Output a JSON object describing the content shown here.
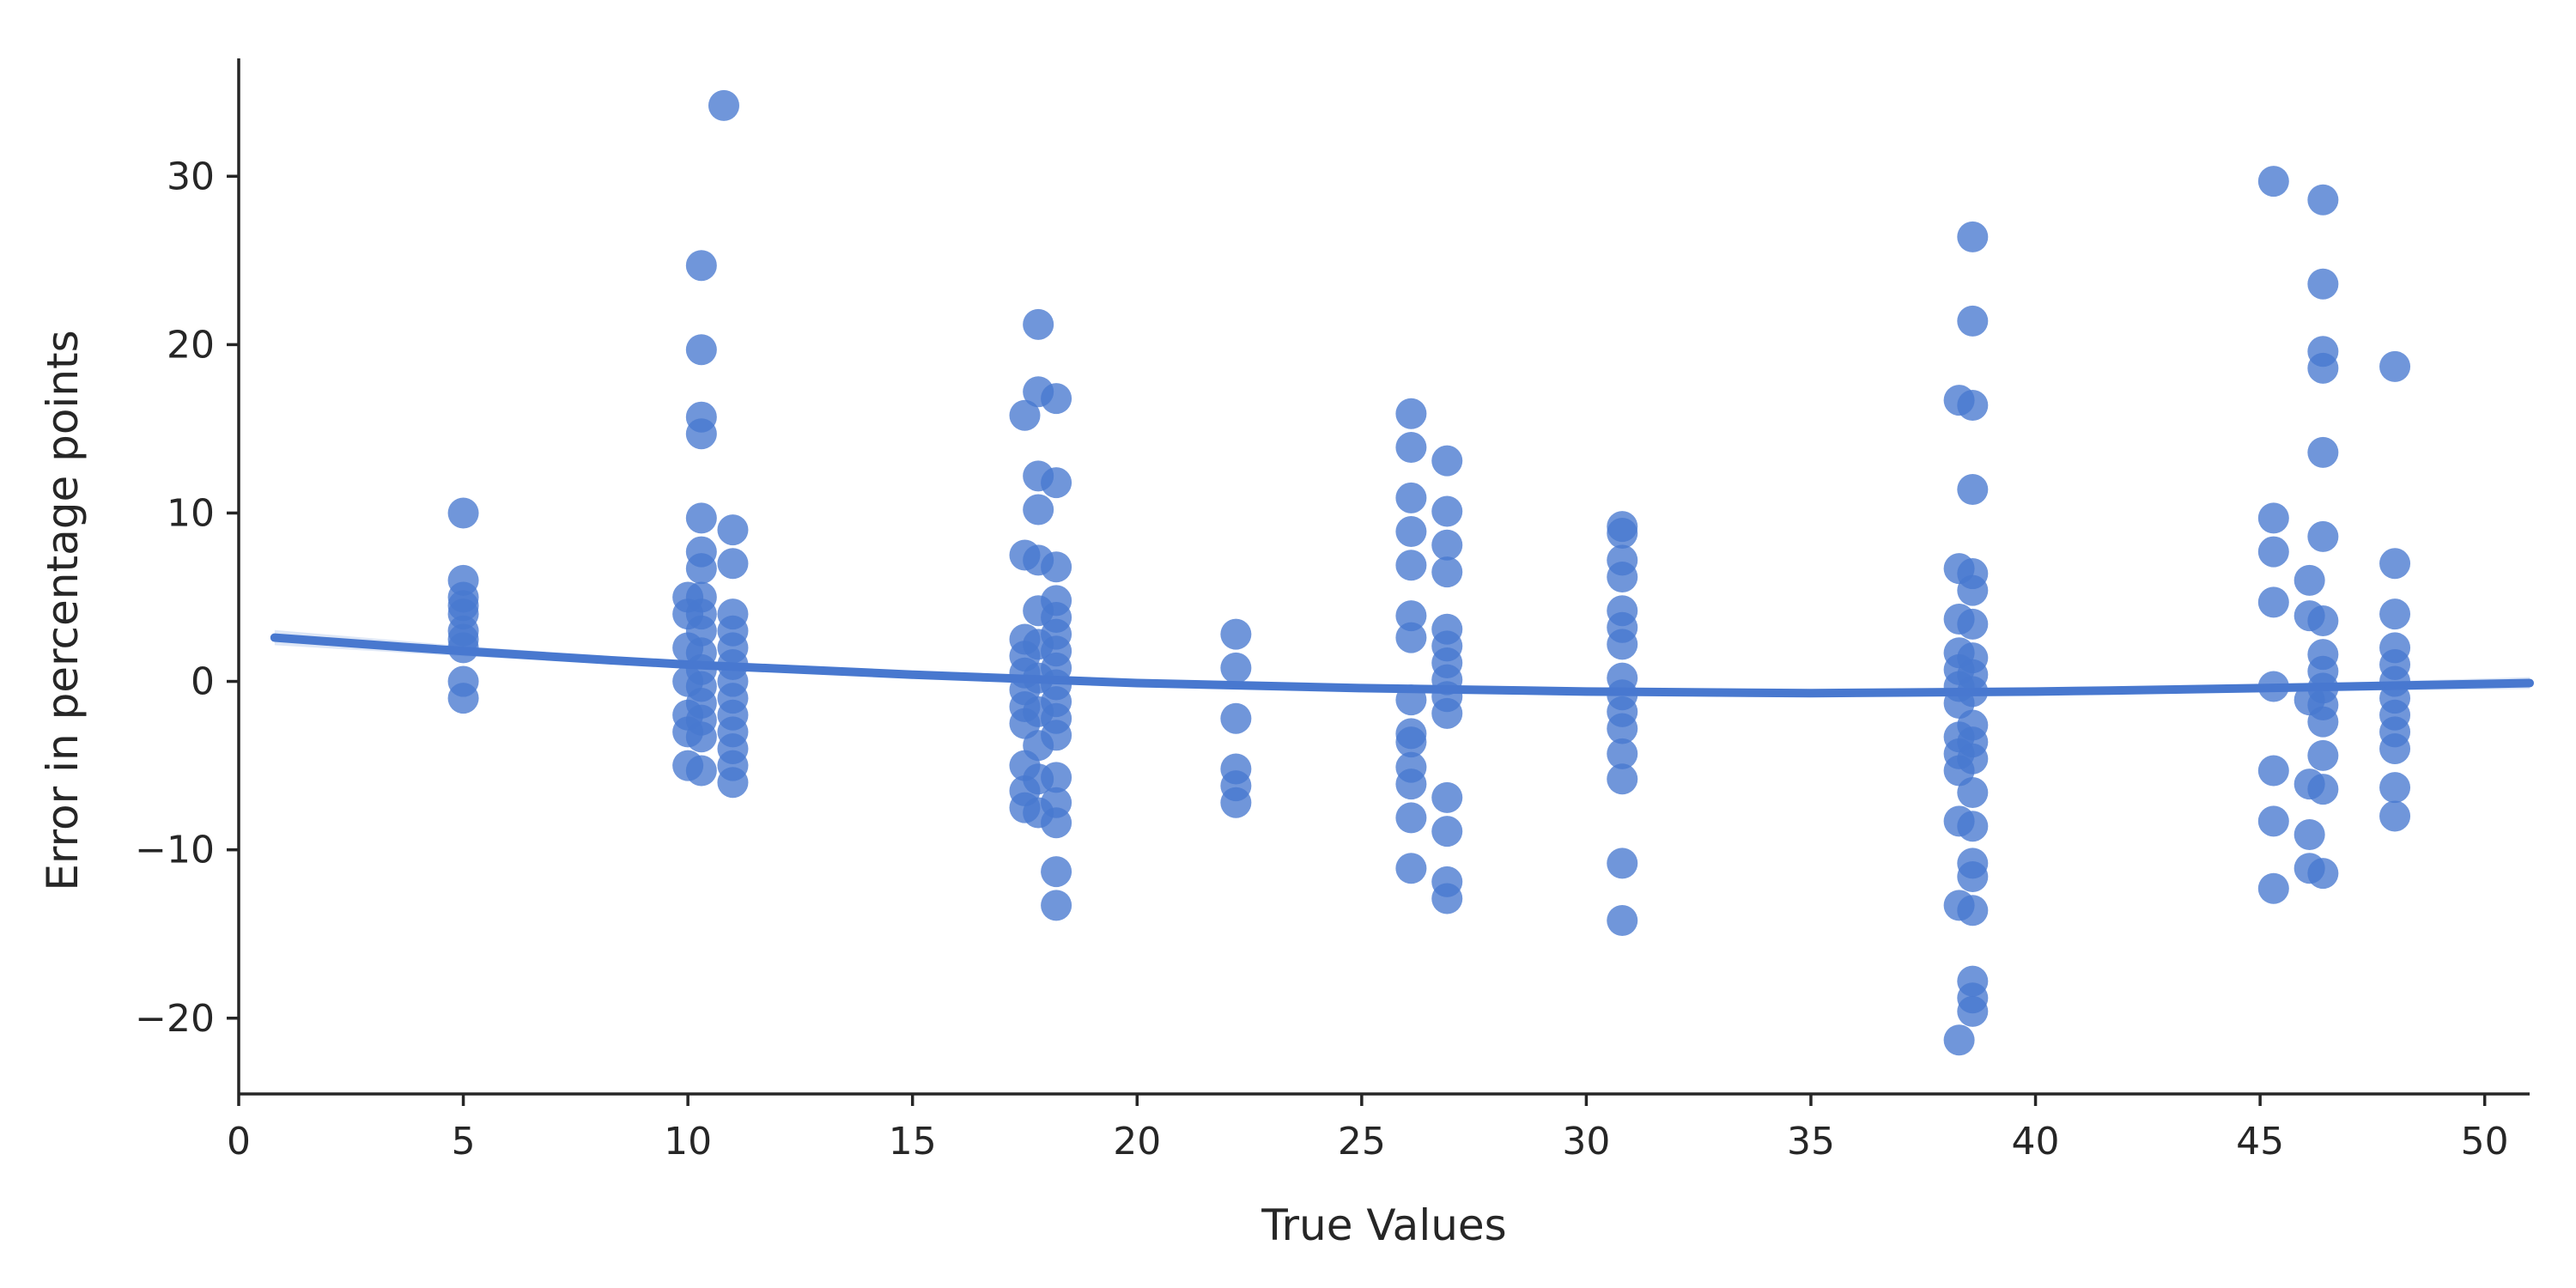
{
  "chart_data": {
    "type": "scatter",
    "title": "",
    "xlabel": "True Values",
    "ylabel": "Error in percentage points",
    "xlim": [
      0,
      51
    ],
    "ylim": [
      -24.5,
      37
    ],
    "xticks": [
      0,
      5,
      10,
      15,
      20,
      25,
      30,
      35,
      40,
      45,
      50
    ],
    "yticks": [
      -20,
      -10,
      0,
      10,
      20,
      30
    ],
    "grid": false,
    "legend": "none",
    "color": "#4878CF",
    "points": [
      {
        "x": 5,
        "y": 10
      },
      {
        "x": 5,
        "y": 6
      },
      {
        "x": 5,
        "y": 5
      },
      {
        "x": 5,
        "y": 4.5
      },
      {
        "x": 5,
        "y": 4
      },
      {
        "x": 5,
        "y": 3
      },
      {
        "x": 5,
        "y": 2.5
      },
      {
        "x": 5,
        "y": 2
      },
      {
        "x": 5,
        "y": 0
      },
      {
        "x": 5,
        "y": -1
      },
      {
        "x": 10,
        "y": 5
      },
      {
        "x": 10,
        "y": 4
      },
      {
        "x": 10,
        "y": 2
      },
      {
        "x": 10,
        "y": 0
      },
      {
        "x": 10,
        "y": -2
      },
      {
        "x": 10,
        "y": -3
      },
      {
        "x": 10,
        "y": -5
      },
      {
        "x": 10.3,
        "y": 24.7
      },
      {
        "x": 10.3,
        "y": 19.7
      },
      {
        "x": 10.3,
        "y": 15.7
      },
      {
        "x": 10.3,
        "y": 14.7
      },
      {
        "x": 10.3,
        "y": 9.7
      },
      {
        "x": 10.3,
        "y": 7.7
      },
      {
        "x": 10.3,
        "y": 6.7
      },
      {
        "x": 10.3,
        "y": 5
      },
      {
        "x": 10.3,
        "y": 4
      },
      {
        "x": 10.3,
        "y": 3
      },
      {
        "x": 10.3,
        "y": 1.7
      },
      {
        "x": 10.3,
        "y": 0.7
      },
      {
        "x": 10.3,
        "y": -0.3
      },
      {
        "x": 10.3,
        "y": -1.3
      },
      {
        "x": 10.3,
        "y": -2.3
      },
      {
        "x": 10.3,
        "y": -3.3
      },
      {
        "x": 10.3,
        "y": -5.3
      },
      {
        "x": 10.8,
        "y": 34.2
      },
      {
        "x": 11,
        "y": 9
      },
      {
        "x": 11,
        "y": 7
      },
      {
        "x": 11,
        "y": 4
      },
      {
        "x": 11,
        "y": 3
      },
      {
        "x": 11,
        "y": 2
      },
      {
        "x": 11,
        "y": 1
      },
      {
        "x": 11,
        "y": 0
      },
      {
        "x": 11,
        "y": -1
      },
      {
        "x": 11,
        "y": -2
      },
      {
        "x": 11,
        "y": -3
      },
      {
        "x": 11,
        "y": -4
      },
      {
        "x": 11,
        "y": -5
      },
      {
        "x": 11,
        "y": -6
      },
      {
        "x": 17.5,
        "y": 15.8
      },
      {
        "x": 17.5,
        "y": 7.5
      },
      {
        "x": 17.5,
        "y": 2.5
      },
      {
        "x": 17.5,
        "y": 1.5
      },
      {
        "x": 17.5,
        "y": 0.5
      },
      {
        "x": 17.5,
        "y": -0.5
      },
      {
        "x": 17.5,
        "y": -1.5
      },
      {
        "x": 17.5,
        "y": -2.5
      },
      {
        "x": 17.5,
        "y": -5
      },
      {
        "x": 17.5,
        "y": -6.5
      },
      {
        "x": 17.5,
        "y": -7.5
      },
      {
        "x": 17.8,
        "y": 21.2
      },
      {
        "x": 17.8,
        "y": 17.2
      },
      {
        "x": 17.8,
        "y": 12.2
      },
      {
        "x": 17.8,
        "y": 10.2
      },
      {
        "x": 17.8,
        "y": 7.2
      },
      {
        "x": 17.8,
        "y": 4.2
      },
      {
        "x": 17.8,
        "y": 2.2
      },
      {
        "x": 17.8,
        "y": 0.2
      },
      {
        "x": 17.8,
        "y": -1.8
      },
      {
        "x": 17.8,
        "y": -3.8
      },
      {
        "x": 17.8,
        "y": -5.8
      },
      {
        "x": 17.8,
        "y": -7.8
      },
      {
        "x": 18.2,
        "y": 16.8
      },
      {
        "x": 18.2,
        "y": 11.8
      },
      {
        "x": 18.2,
        "y": 6.8
      },
      {
        "x": 18.2,
        "y": 4.8
      },
      {
        "x": 18.2,
        "y": 3.8
      },
      {
        "x": 18.2,
        "y": 2.8
      },
      {
        "x": 18.2,
        "y": 1.8
      },
      {
        "x": 18.2,
        "y": 0.8
      },
      {
        "x": 18.2,
        "y": -0.2
      },
      {
        "x": 18.2,
        "y": -1.2
      },
      {
        "x": 18.2,
        "y": -2.2
      },
      {
        "x": 18.2,
        "y": -3.2
      },
      {
        "x": 18.2,
        "y": -5.7
      },
      {
        "x": 18.2,
        "y": -7.2
      },
      {
        "x": 18.2,
        "y": -8.4
      },
      {
        "x": 18.2,
        "y": -11.3
      },
      {
        "x": 18.2,
        "y": -13.3
      },
      {
        "x": 22.2,
        "y": 2.8
      },
      {
        "x": 22.2,
        "y": 0.8
      },
      {
        "x": 22.2,
        "y": -2.2
      },
      {
        "x": 22.2,
        "y": -5.2
      },
      {
        "x": 22.2,
        "y": -6.2
      },
      {
        "x": 22.2,
        "y": -7.2
      },
      {
        "x": 26.1,
        "y": 15.9
      },
      {
        "x": 26.1,
        "y": 13.9
      },
      {
        "x": 26.1,
        "y": 10.9
      },
      {
        "x": 26.1,
        "y": 8.9
      },
      {
        "x": 26.1,
        "y": 6.9
      },
      {
        "x": 26.1,
        "y": 3.9
      },
      {
        "x": 26.1,
        "y": 2.6
      },
      {
        "x": 26.1,
        "y": -1.1
      },
      {
        "x": 26.1,
        "y": -3.1
      },
      {
        "x": 26.1,
        "y": -3.6
      },
      {
        "x": 26.1,
        "y": -5.1
      },
      {
        "x": 26.1,
        "y": -6.1
      },
      {
        "x": 26.1,
        "y": -8.1
      },
      {
        "x": 26.1,
        "y": -11.1
      },
      {
        "x": 26.9,
        "y": 13.1
      },
      {
        "x": 26.9,
        "y": 10.1
      },
      {
        "x": 26.9,
        "y": 8.1
      },
      {
        "x": 26.9,
        "y": 6.5
      },
      {
        "x": 26.9,
        "y": 3.1
      },
      {
        "x": 26.9,
        "y": 2.1
      },
      {
        "x": 26.9,
        "y": 1.1
      },
      {
        "x": 26.9,
        "y": 0.1
      },
      {
        "x": 26.9,
        "y": -0.9
      },
      {
        "x": 26.9,
        "y": -1.9
      },
      {
        "x": 26.9,
        "y": -6.9
      },
      {
        "x": 26.9,
        "y": -8.9
      },
      {
        "x": 26.9,
        "y": -11.9
      },
      {
        "x": 26.9,
        "y": -12.9
      },
      {
        "x": 30.8,
        "y": 9.2
      },
      {
        "x": 30.8,
        "y": 8.8
      },
      {
        "x": 30.8,
        "y": 7.2
      },
      {
        "x": 30.8,
        "y": 6.2
      },
      {
        "x": 30.8,
        "y": 4.2
      },
      {
        "x": 30.8,
        "y": 3.2
      },
      {
        "x": 30.8,
        "y": 2.2
      },
      {
        "x": 30.8,
        "y": 0.2
      },
      {
        "x": 30.8,
        "y": -0.8
      },
      {
        "x": 30.8,
        "y": -1.8
      },
      {
        "x": 30.8,
        "y": -2.8
      },
      {
        "x": 30.8,
        "y": -4.3
      },
      {
        "x": 30.8,
        "y": -5.8
      },
      {
        "x": 30.8,
        "y": -10.8
      },
      {
        "x": 30.8,
        "y": -14.2
      },
      {
        "x": 38.3,
        "y": 16.7
      },
      {
        "x": 38.3,
        "y": 6.7
      },
      {
        "x": 38.3,
        "y": 3.7
      },
      {
        "x": 38.3,
        "y": 1.7
      },
      {
        "x": 38.3,
        "y": 0.7
      },
      {
        "x": 38.3,
        "y": -0.3
      },
      {
        "x": 38.3,
        "y": -1.3
      },
      {
        "x": 38.3,
        "y": -3.3
      },
      {
        "x": 38.3,
        "y": -4.3
      },
      {
        "x": 38.3,
        "y": -5.3
      },
      {
        "x": 38.3,
        "y": -8.3
      },
      {
        "x": 38.3,
        "y": -13.3
      },
      {
        "x": 38.3,
        "y": -21.3
      },
      {
        "x": 38.6,
        "y": 26.4
      },
      {
        "x": 38.6,
        "y": 21.4
      },
      {
        "x": 38.6,
        "y": 16.4
      },
      {
        "x": 38.6,
        "y": 11.4
      },
      {
        "x": 38.6,
        "y": 6.4
      },
      {
        "x": 38.6,
        "y": 5.4
      },
      {
        "x": 38.6,
        "y": 3.4
      },
      {
        "x": 38.6,
        "y": 1.4
      },
      {
        "x": 38.6,
        "y": 0.4
      },
      {
        "x": 38.6,
        "y": -0.6
      },
      {
        "x": 38.6,
        "y": -2.6
      },
      {
        "x": 38.6,
        "y": -3.6
      },
      {
        "x": 38.6,
        "y": -4.6
      },
      {
        "x": 38.6,
        "y": -6.6
      },
      {
        "x": 38.6,
        "y": -8.6
      },
      {
        "x": 38.6,
        "y": -10.8
      },
      {
        "x": 38.6,
        "y": -11.6
      },
      {
        "x": 38.6,
        "y": -13.6
      },
      {
        "x": 38.6,
        "y": -17.8
      },
      {
        "x": 38.6,
        "y": -18.8
      },
      {
        "x": 38.6,
        "y": -19.6
      },
      {
        "x": 45.3,
        "y": 29.7
      },
      {
        "x": 45.3,
        "y": 9.7
      },
      {
        "x": 45.3,
        "y": 7.7
      },
      {
        "x": 45.3,
        "y": 4.7
      },
      {
        "x": 45.3,
        "y": -0.3
      },
      {
        "x": 45.3,
        "y": -5.3
      },
      {
        "x": 45.3,
        "y": -8.3
      },
      {
        "x": 45.3,
        "y": -12.3
      },
      {
        "x": 46.1,
        "y": 6
      },
      {
        "x": 46.1,
        "y": 3.9
      },
      {
        "x": 46.1,
        "y": -1.1
      },
      {
        "x": 46.1,
        "y": -6.1
      },
      {
        "x": 46.1,
        "y": -9.1
      },
      {
        "x": 46.1,
        "y": -11.1
      },
      {
        "x": 46.4,
        "y": 28.6
      },
      {
        "x": 46.4,
        "y": 23.6
      },
      {
        "x": 46.4,
        "y": 19.6
      },
      {
        "x": 46.4,
        "y": 18.6
      },
      {
        "x": 46.4,
        "y": 13.6
      },
      {
        "x": 46.4,
        "y": 8.6
      },
      {
        "x": 46.4,
        "y": 3.6
      },
      {
        "x": 46.4,
        "y": 1.6
      },
      {
        "x": 46.4,
        "y": 0.6
      },
      {
        "x": 46.4,
        "y": -0.4
      },
      {
        "x": 46.4,
        "y": -1.4
      },
      {
        "x": 46.4,
        "y": -2.4
      },
      {
        "x": 46.4,
        "y": -4.4
      },
      {
        "x": 46.4,
        "y": -6.4
      },
      {
        "x": 46.4,
        "y": -11.4
      },
      {
        "x": 48,
        "y": 18.7
      },
      {
        "x": 48,
        "y": 7
      },
      {
        "x": 48,
        "y": 4
      },
      {
        "x": 48,
        "y": 2
      },
      {
        "x": 48,
        "y": 1
      },
      {
        "x": 48,
        "y": 0
      },
      {
        "x": 48,
        "y": -1
      },
      {
        "x": 48,
        "y": -2
      },
      {
        "x": 48,
        "y": -3
      },
      {
        "x": 48,
        "y": -4
      },
      {
        "x": 48,
        "y": -6.3
      },
      {
        "x": 48,
        "y": -8
      }
    ],
    "fit": {
      "type": "polynomial-order-2",
      "x": [
        0.8,
        5,
        10,
        15,
        20,
        25,
        30,
        35,
        40,
        45,
        51
      ],
      "y": [
        2.6,
        1.8,
        1.0,
        0.4,
        -0.1,
        -0.4,
        -0.6,
        -0.7,
        -0.6,
        -0.4,
        -0.1
      ],
      "band_half_width": [
        0.45,
        0.3,
        0.2,
        0.15,
        0.12,
        0.12,
        0.12,
        0.12,
        0.15,
        0.2,
        0.35
      ]
    }
  }
}
